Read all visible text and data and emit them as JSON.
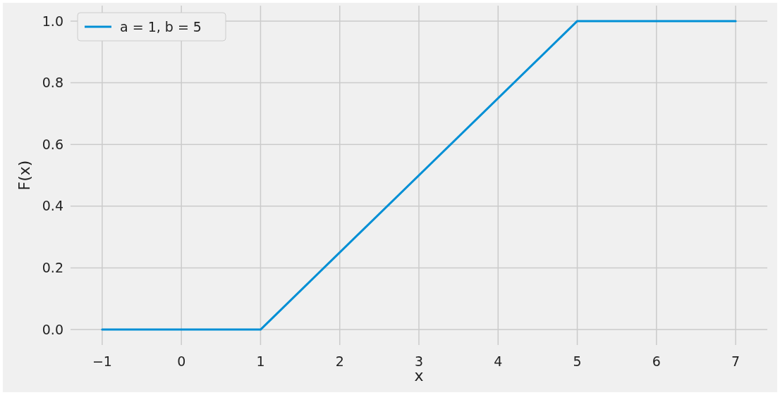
{
  "chart_data": {
    "type": "line",
    "xlabel": "x",
    "ylabel": "F(x)",
    "x": [
      -1,
      1,
      5,
      7
    ],
    "series": [
      {
        "name": "a = 1, b = 5",
        "color": "#008fd5",
        "values": [
          0,
          0,
          1,
          1
        ]
      }
    ],
    "xlim": [
      -1.4,
      7.4
    ],
    "xticks": [
      {
        "value": -1,
        "label": "−1"
      },
      0,
      1,
      2,
      3,
      4,
      5,
      6,
      7
    ],
    "ylim": [
      -0.05,
      1.05
    ],
    "yticks": [
      {
        "value": 0,
        "label": "0.0"
      },
      0.2,
      0.4,
      0.6,
      0.8,
      {
        "value": 1,
        "label": "1.0"
      }
    ],
    "grid": true,
    "legend": "top left",
    "marker": "none",
    "line_style": "solid"
  }
}
